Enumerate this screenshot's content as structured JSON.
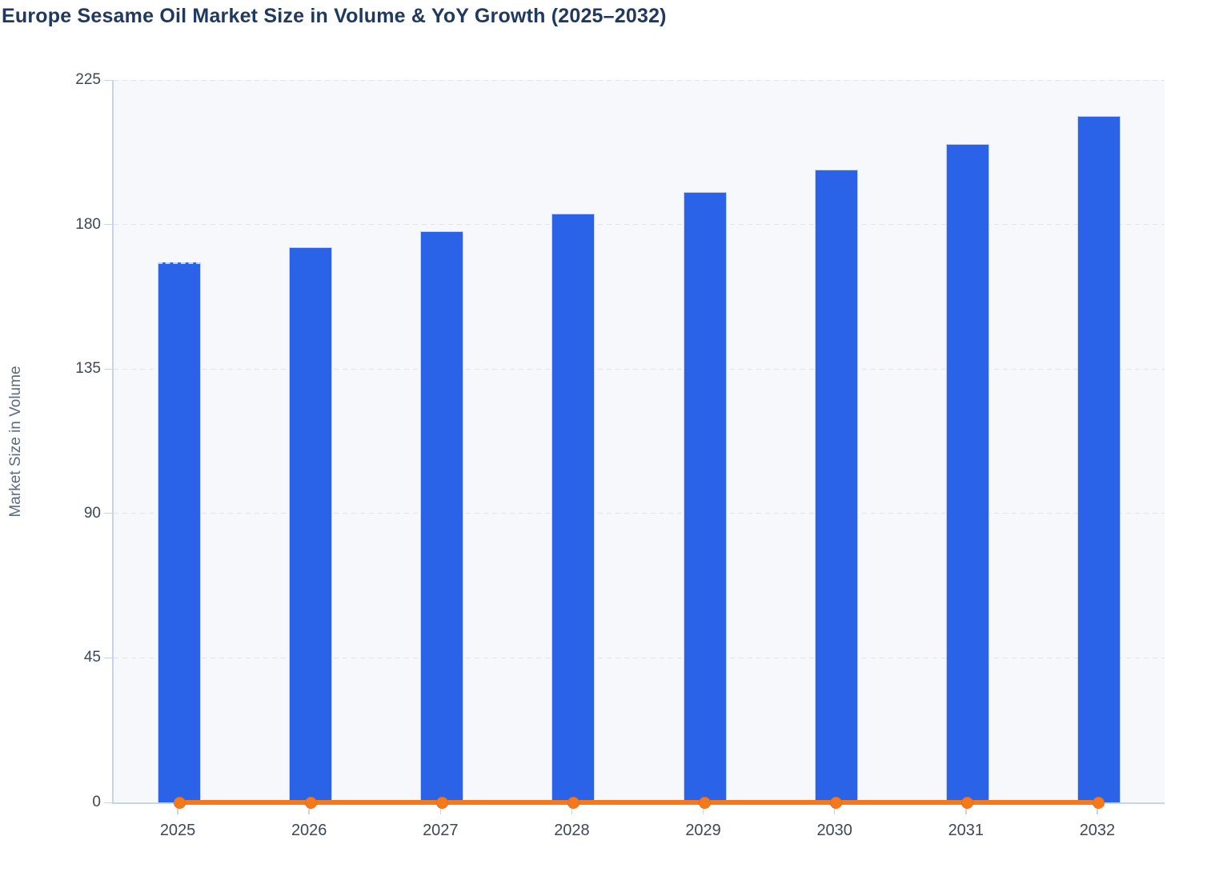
{
  "page": {
    "heading": "Europe Sesame Oil Market Size in Volume & YoY Growth (2025–2032)"
  },
  "chart_data": {
    "type": "bar",
    "title": "Europe Sesame Oil Market Size in Volume & YoY Growth (2025–2032)",
    "xlabel": "",
    "ylabel": "Market Size in Volume",
    "categories": [
      "2025",
      "2026",
      "2027",
      "2028",
      "2029",
      "2030",
      "2031",
      "2032"
    ],
    "series": [
      {
        "name": "Market Size in Volume",
        "type": "bar",
        "color": "#2a63e8",
        "values": [
          168.3,
          172.9,
          177.9,
          183.5,
          190.0,
          197.0,
          205.1,
          213.8
        ]
      },
      {
        "name": "YoY Growth",
        "type": "line",
        "color": "#f5791b",
        "values": [
          0,
          0,
          0,
          0,
          0,
          0,
          0,
          0
        ]
      }
    ],
    "ylim": [
      0,
      225
    ],
    "yticks": [
      0,
      45,
      90,
      135,
      180,
      225
    ],
    "grid": "horizontal-dashed",
    "legend_position": "none"
  },
  "colors": {
    "bar": "#2a63e8",
    "bar_border": "#c3d2f4",
    "line": "#f5791b",
    "marker_stroke": "#ef6a0e",
    "plot_bg": "#f7f8fb",
    "grid": "#e1e3e8",
    "axis": "#c9d3ee",
    "title_text": "#20395f",
    "tick_text": "#3d4757",
    "ylabel_text": "#5b6b82"
  }
}
